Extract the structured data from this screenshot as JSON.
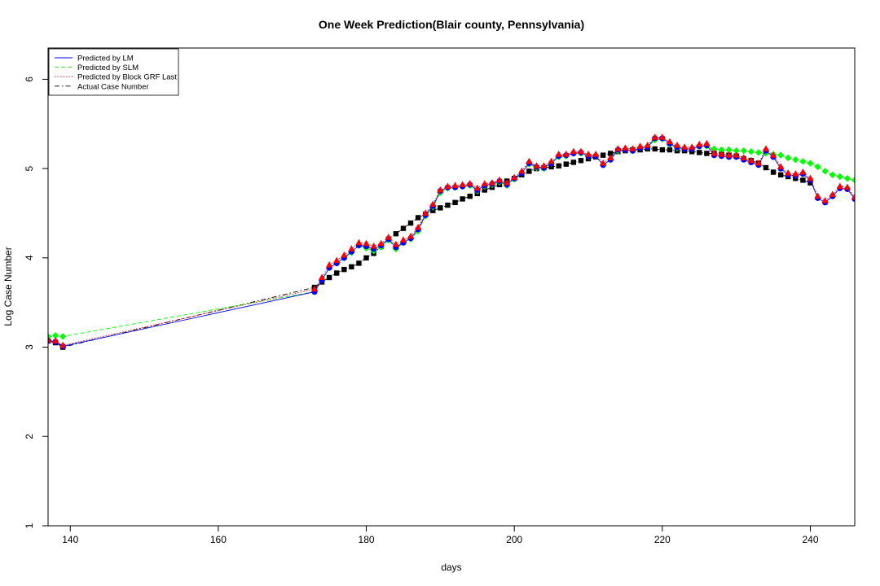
{
  "chart_data": {
    "type": "scatter",
    "title": "One Week Prediction(Blair county, Pennsylvania)",
    "xlabel": "days",
    "ylabel": "Log Case Number",
    "xlim": [
      137,
      246
    ],
    "ylim": [
      1,
      6.35
    ],
    "xticks": [
      140,
      160,
      180,
      200,
      220,
      240
    ],
    "yticks": [
      1,
      2,
      3,
      4,
      5,
      6
    ],
    "grid": false,
    "legend_position": "top-left",
    "legend": [
      {
        "label": "Predicted by LM",
        "color": "#0000ff",
        "line": "solid"
      },
      {
        "label": "Predicted by SLM",
        "color": "#00ff00",
        "line": "dashed"
      },
      {
        "label": "Predicted by Block GRF Last",
        "color": "#ff0000",
        "line": "dotted"
      },
      {
        "label": "Actual Case Number",
        "color": "#000000",
        "line": "dashdot"
      }
    ],
    "x": [
      137,
      138,
      139,
      173,
      174,
      175,
      176,
      177,
      178,
      179,
      180,
      181,
      182,
      183,
      184,
      185,
      186,
      187,
      188,
      189,
      190,
      191,
      192,
      193,
      194,
      195,
      196,
      197,
      198,
      199,
      200,
      201,
      202,
      203,
      204,
      205,
      206,
      207,
      208,
      209,
      210,
      211,
      212,
      213,
      214,
      215,
      216,
      217,
      218,
      219,
      220,
      221,
      222,
      223,
      224,
      225,
      226,
      227,
      228,
      229,
      230,
      231,
      232,
      233,
      234,
      235,
      236,
      237,
      238,
      239,
      240,
      241,
      242,
      243,
      244,
      245,
      246
    ],
    "series": [
      {
        "name": "Actual Case Number",
        "color": "#000000",
        "marker": "square",
        "values": [
          3.07,
          3.05,
          3.0,
          3.67,
          3.73,
          3.78,
          3.83,
          3.87,
          3.9,
          3.94,
          4.0,
          4.05,
          4.13,
          4.21,
          4.27,
          4.33,
          4.39,
          4.45,
          4.49,
          4.53,
          4.56,
          4.59,
          4.62,
          4.66,
          4.69,
          4.72,
          4.76,
          4.79,
          4.82,
          4.86,
          4.89,
          4.93,
          4.97,
          5.0,
          5.01,
          5.02,
          5.03,
          5.05,
          5.07,
          5.09,
          5.11,
          5.13,
          5.15,
          5.17,
          5.19,
          5.2,
          5.21,
          5.21,
          5.22,
          5.22,
          5.21,
          5.21,
          5.2,
          5.2,
          5.19,
          5.18,
          5.17,
          5.17,
          5.16,
          5.15,
          5.14,
          5.11,
          5.09,
          5.06,
          5.01,
          4.96,
          4.93,
          4.91,
          4.89,
          4.87,
          4.84,
          null,
          null,
          null,
          null,
          null,
          null
        ]
      },
      {
        "name": "Predicted by SLM",
        "color": "#00ff00",
        "marker": "diamond",
        "values": [
          3.12,
          3.13,
          3.12,
          3.62,
          3.75,
          3.89,
          3.94,
          4.0,
          4.06,
          4.14,
          4.11,
          4.08,
          4.12,
          4.2,
          4.1,
          4.17,
          4.21,
          4.3,
          4.47,
          4.57,
          4.73,
          4.78,
          4.79,
          4.8,
          4.81,
          4.75,
          4.8,
          4.82,
          4.85,
          4.81,
          4.88,
          4.95,
          5.05,
          5.01,
          5.0,
          5.06,
          5.13,
          5.14,
          5.17,
          5.17,
          5.14,
          5.14,
          5.04,
          5.1,
          5.2,
          5.21,
          5.2,
          5.23,
          5.24,
          5.32,
          5.33,
          5.27,
          5.23,
          5.22,
          5.22,
          5.25,
          5.25,
          5.22,
          5.21,
          5.21,
          5.2,
          5.2,
          5.19,
          5.18,
          5.17,
          5.16,
          5.15,
          5.12,
          5.1,
          5.08,
          5.06,
          5.02,
          4.97,
          4.93,
          4.91,
          4.89,
          4.87
        ]
      },
      {
        "name": "Predicted by LM",
        "color": "#0000ff",
        "marker": "circle",
        "values": [
          3.07,
          3.06,
          3.01,
          3.62,
          3.75,
          3.89,
          3.94,
          4.0,
          4.07,
          4.14,
          4.13,
          4.1,
          4.14,
          4.21,
          4.12,
          4.17,
          4.22,
          4.32,
          4.48,
          4.58,
          4.75,
          4.79,
          4.79,
          4.8,
          4.82,
          4.76,
          4.81,
          4.83,
          4.86,
          4.82,
          4.89,
          4.95,
          5.06,
          5.02,
          5.01,
          5.06,
          5.14,
          5.15,
          5.17,
          5.18,
          5.14,
          5.14,
          5.04,
          5.1,
          5.21,
          5.21,
          5.2,
          5.23,
          5.24,
          5.34,
          5.34,
          5.28,
          5.24,
          5.22,
          5.22,
          5.25,
          5.26,
          5.15,
          5.14,
          5.13,
          5.13,
          5.1,
          5.07,
          5.04,
          5.2,
          5.13,
          5.0,
          4.93,
          4.92,
          4.94,
          4.87,
          4.67,
          4.62,
          4.69,
          4.78,
          4.77,
          4.66
        ]
      },
      {
        "name": "Predicted by Block GRF Last",
        "color": "#ff0000",
        "marker": "triangle",
        "values": [
          3.08,
          3.07,
          3.02,
          3.65,
          3.78,
          3.92,
          3.97,
          4.03,
          4.1,
          4.17,
          4.16,
          4.13,
          4.16,
          4.23,
          4.15,
          4.2,
          4.24,
          4.34,
          4.5,
          4.6,
          4.76,
          4.8,
          4.81,
          4.82,
          4.83,
          4.78,
          4.83,
          4.84,
          4.87,
          4.84,
          4.9,
          4.97,
          5.08,
          5.03,
          5.03,
          5.08,
          5.16,
          5.16,
          5.19,
          5.19,
          5.16,
          5.16,
          5.06,
          5.12,
          5.22,
          5.23,
          5.22,
          5.25,
          5.26,
          5.35,
          5.35,
          5.3,
          5.26,
          5.24,
          5.24,
          5.27,
          5.28,
          5.17,
          5.16,
          5.15,
          5.15,
          5.12,
          5.09,
          5.06,
          5.22,
          5.15,
          5.02,
          4.95,
          4.94,
          4.96,
          4.89,
          4.69,
          4.64,
          4.71,
          4.8,
          4.79,
          4.68
        ]
      }
    ]
  }
}
